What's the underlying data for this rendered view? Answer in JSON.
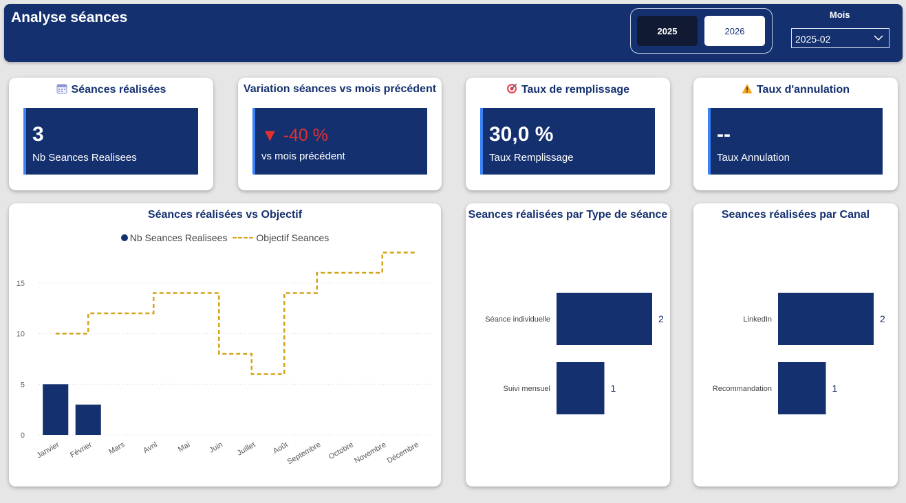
{
  "header": {
    "title": "Analyse séances",
    "years": [
      "2025",
      "2026"
    ],
    "active_year": "2025",
    "month_label": "Mois",
    "month_value": "2025-02"
  },
  "kpis": [
    {
      "title": "Séances réalisées",
      "icon": "calendar-icon",
      "value": "3",
      "label": "Nb Seances Realisees"
    },
    {
      "title": "Variation séances vs mois précédent",
      "icon": "down-triangle-icon",
      "value": "▼ -40 %",
      "label": "vs mois précédent"
    },
    {
      "title": "Taux de remplissage",
      "icon": "target-icon",
      "value": "30,0 %",
      "label": "Taux Remplissage"
    },
    {
      "title": "Taux d'annulation",
      "icon": "warning-icon",
      "value": "--",
      "label": "Taux Annulation"
    }
  ],
  "colors": {
    "primary": "#14306f",
    "accent": "#3b82f6",
    "objective": "#d4a317",
    "negative": "#e03131"
  },
  "chart_data": [
    {
      "type": "bar",
      "title": "Séances réalisées vs Objectif",
      "categories": [
        "Janvier",
        "Février",
        "Mars",
        "Avril",
        "Mai",
        "Juin",
        "Juillet",
        "Août",
        "Septembre",
        "Octobre",
        "Novembre",
        "Décembre"
      ],
      "series": [
        {
          "name": "Nb Seances Realisees",
          "kind": "bar",
          "values": [
            5,
            3,
            null,
            null,
            null,
            null,
            null,
            null,
            null,
            null,
            null,
            null
          ]
        },
        {
          "name": "Objectif Seances",
          "kind": "step-line-dashed",
          "values": [
            10,
            12,
            12,
            14,
            14,
            8,
            6,
            14,
            16,
            16,
            18,
            null
          ]
        }
      ],
      "yticks": [
        0,
        5,
        10,
        15
      ],
      "ylim": [
        0,
        20
      ],
      "legend": "top-center"
    },
    {
      "type": "bar",
      "orientation": "horizontal",
      "title": "Seances réalisées par Type de séance",
      "categories": [
        "Séance individuelle",
        "Suivi mensuel"
      ],
      "values": [
        2,
        1
      ]
    },
    {
      "type": "bar",
      "orientation": "horizontal",
      "title": "Seances réalisées par Canal",
      "categories": [
        "LinkedIn",
        "Recommandation"
      ],
      "values": [
        2,
        1
      ]
    }
  ]
}
